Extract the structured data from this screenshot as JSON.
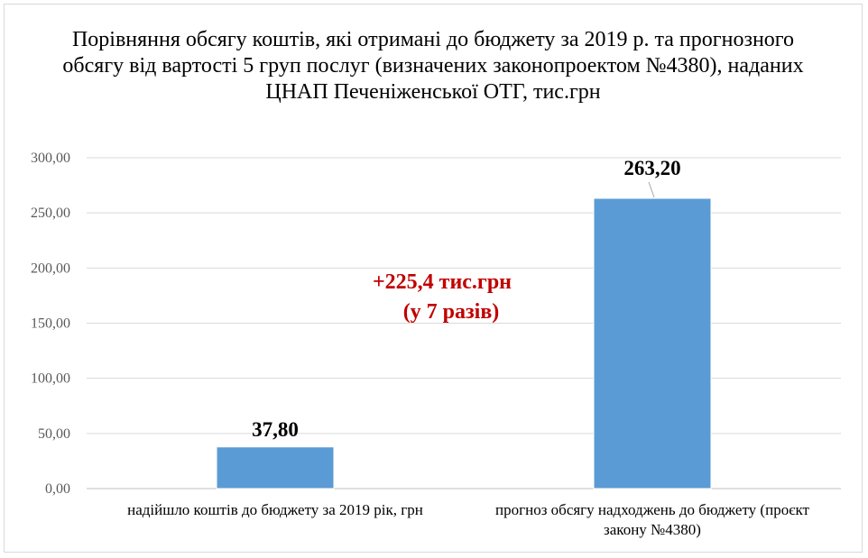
{
  "chart_data": {
    "type": "bar",
    "title": "Порівняння обсягу коштів, які отримані до бюджету за 2019 р. та прогнозного обсягу від вартості 5 груп послуг (визначених законопроектом №4380), наданих ЦНАП Печеніженської ОТГ, тис.грн",
    "categories": [
      "надійшло коштів до бюджету за 2019 рік, грн",
      "прогноз обсягу надходжень до бюджету (проєкт закону №4380)"
    ],
    "category_lines": [
      [
        "надійшло коштів до бюджету за 2019 рік, грн"
      ],
      [
        "прогноз обсягу надходжень до бюджету (проєкт",
        "закону №4380)"
      ]
    ],
    "values": [
      37.8,
      263.2
    ],
    "value_labels": [
      "37,80",
      "263,20"
    ],
    "ylim": [
      0,
      300
    ],
    "yticks": [
      "0,00",
      "50,00",
      "100,00",
      "150,00",
      "200,00",
      "250,00",
      "300,00"
    ],
    "grid": true,
    "bar_color": "#5b9bd5",
    "annotation": {
      "line1": "+225,4 тис.грн",
      "line2": "(у 7 разів)",
      "color": "#c00000"
    }
  }
}
